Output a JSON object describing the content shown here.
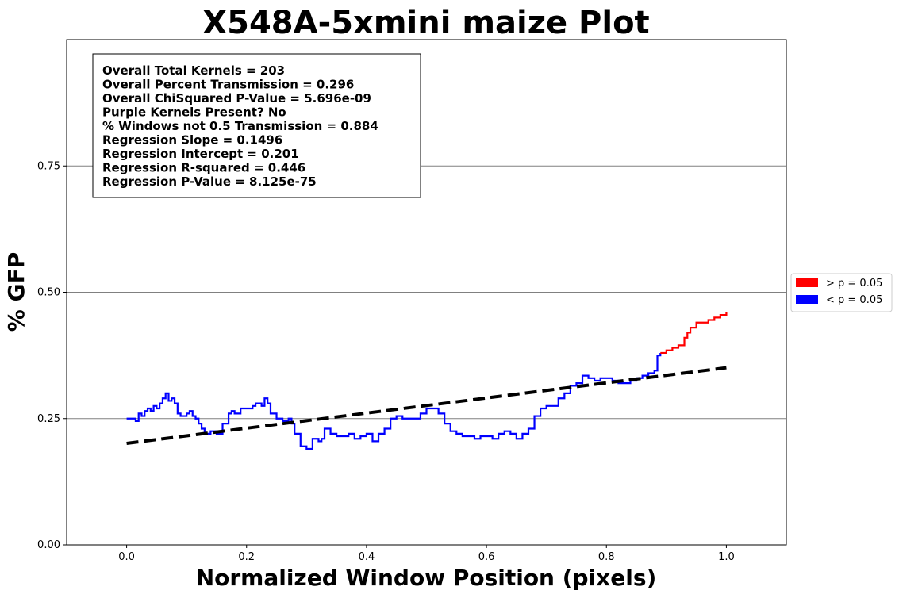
{
  "chart_data": {
    "type": "line",
    "title": "X548A-5xmini maize Plot",
    "xlabel": "Normalized Window Position (pixels)",
    "ylabel": "% GFP",
    "xlim": [
      -0.1,
      1.1
    ],
    "ylim": [
      0.0,
      1.0
    ],
    "xticks": [
      0.0,
      0.2,
      0.4,
      0.6,
      0.8,
      1.0
    ],
    "xtick_labels": [
      "0.0",
      "0.2",
      "0.4",
      "0.6",
      "0.8",
      "1.0"
    ],
    "yticks": [
      0.0,
      0.25,
      0.5,
      0.75
    ],
    "ytick_labels": [
      "0.00",
      "0.25",
      "0.50",
      "0.75"
    ],
    "grid": "horizontal",
    "legend_position": "outside-right",
    "legend": [
      {
        "label": "> p = 0.05",
        "color": "#ff0000"
      },
      {
        "label": "< p = 0.05",
        "color": "#0000ff"
      }
    ],
    "stats": [
      "Overall Total Kernels = 203",
      "Overall Percent Transmission = 0.296",
      "Overall ChiSquared P-Value = 5.696e-09",
      "Purple Kernels Present? No",
      "% Windows not 0.5 Transmission = 0.884",
      "Regression Slope = 0.1496",
      "Regression Intercept = 0.201",
      "Regression R-squared = 0.446",
      "Regression P-Value = 8.125e-75"
    ],
    "regression": {
      "slope": 0.1496,
      "intercept": 0.201,
      "x_range": [
        0.0,
        1.0
      ],
      "color": "#000000",
      "style": "dashed"
    },
    "series": [
      {
        "color": "#0000ff",
        "x": [
          0.0,
          0.01,
          0.015,
          0.02,
          0.025,
          0.03,
          0.035,
          0.04,
          0.045,
          0.05,
          0.055,
          0.06,
          0.065,
          0.07,
          0.075,
          0.08,
          0.085,
          0.09,
          0.1,
          0.105,
          0.11,
          0.115,
          0.12,
          0.125,
          0.13,
          0.14,
          0.15,
          0.16,
          0.17,
          0.175,
          0.18,
          0.19,
          0.2,
          0.21,
          0.215,
          0.22,
          0.225,
          0.23,
          0.235,
          0.24,
          0.25,
          0.26,
          0.27,
          0.275,
          0.28,
          0.29,
          0.3,
          0.31,
          0.32,
          0.325,
          0.33,
          0.34,
          0.35,
          0.36,
          0.37,
          0.38,
          0.39,
          0.4,
          0.41,
          0.42,
          0.43,
          0.44,
          0.45,
          0.46,
          0.47,
          0.48,
          0.49,
          0.5,
          0.51,
          0.52,
          0.53,
          0.54,
          0.55,
          0.56,
          0.57,
          0.58,
          0.59,
          0.6,
          0.61,
          0.62,
          0.63,
          0.64,
          0.65,
          0.66,
          0.67,
          0.68,
          0.69,
          0.7,
          0.71,
          0.72,
          0.73,
          0.74,
          0.75,
          0.76,
          0.77,
          0.78,
          0.79,
          0.8,
          0.81,
          0.82,
          0.83,
          0.84,
          0.85,
          0.86,
          0.87,
          0.88,
          0.885,
          0.89
        ],
        "y": [
          0.25,
          0.25,
          0.245,
          0.26,
          0.255,
          0.265,
          0.27,
          0.265,
          0.275,
          0.27,
          0.28,
          0.29,
          0.3,
          0.285,
          0.29,
          0.28,
          0.26,
          0.255,
          0.26,
          0.265,
          0.255,
          0.25,
          0.24,
          0.23,
          0.22,
          0.225,
          0.22,
          0.24,
          0.26,
          0.265,
          0.26,
          0.27,
          0.27,
          0.275,
          0.28,
          0.28,
          0.275,
          0.29,
          0.28,
          0.26,
          0.25,
          0.245,
          0.25,
          0.24,
          0.22,
          0.195,
          0.19,
          0.21,
          0.205,
          0.21,
          0.23,
          0.22,
          0.215,
          0.215,
          0.22,
          0.21,
          0.215,
          0.22,
          0.205,
          0.22,
          0.23,
          0.25,
          0.255,
          0.25,
          0.25,
          0.25,
          0.26,
          0.27,
          0.27,
          0.26,
          0.24,
          0.225,
          0.22,
          0.215,
          0.215,
          0.21,
          0.215,
          0.215,
          0.21,
          0.22,
          0.225,
          0.22,
          0.21,
          0.22,
          0.23,
          0.255,
          0.27,
          0.275,
          0.275,
          0.29,
          0.3,
          0.315,
          0.32,
          0.335,
          0.33,
          0.325,
          0.33,
          0.33,
          0.325,
          0.32,
          0.32,
          0.325,
          0.33,
          0.335,
          0.34,
          0.345,
          0.375,
          0.38
        ]
      },
      {
        "color": "#ff0000",
        "x": [
          0.89,
          0.9,
          0.91,
          0.92,
          0.93,
          0.935,
          0.94,
          0.95,
          0.96,
          0.97,
          0.98,
          0.99,
          1.0
        ],
        "y": [
          0.38,
          0.385,
          0.39,
          0.395,
          0.41,
          0.42,
          0.43,
          0.44,
          0.44,
          0.445,
          0.45,
          0.455,
          0.46
        ]
      }
    ]
  }
}
